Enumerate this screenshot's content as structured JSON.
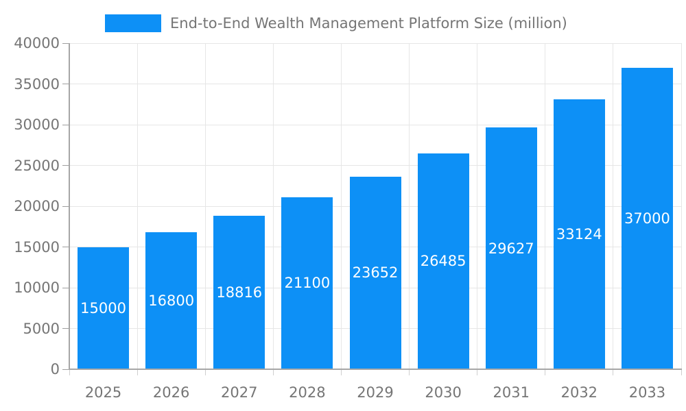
{
  "chart_data": {
    "type": "bar",
    "title": "End-to-End Wealth Management Platform Size (million)",
    "legend_entries": [
      "End-to-End Wealth Management Platform Size (million)"
    ],
    "legend_position": "top-center",
    "categories": [
      "2025",
      "2026",
      "2027",
      "2028",
      "2029",
      "2030",
      "2031",
      "2032",
      "2033"
    ],
    "values": [
      15000,
      16800,
      18816,
      21100,
      23652,
      26485,
      29627,
      33124,
      37000
    ],
    "bar_value_labels": [
      "15000",
      "16800",
      "18816",
      "21100",
      "23652",
      "26485",
      "29627",
      "33124",
      "37000"
    ],
    "xlabel": "",
    "ylabel": "",
    "ylim": [
      0,
      40000
    ],
    "yticks": [
      0,
      5000,
      10000,
      15000,
      20000,
      25000,
      30000,
      35000,
      40000
    ],
    "grid": true
  },
  "colors": {
    "bar": "#0d90f6",
    "bar_value_label": "#ffffff",
    "text": "#757575",
    "axis": "#a6a6a6",
    "grid": "#e6e6e6",
    "tick_y": "#9e9e9e",
    "tick_x": "#cfcfcf",
    "background": "#ffffff"
  }
}
